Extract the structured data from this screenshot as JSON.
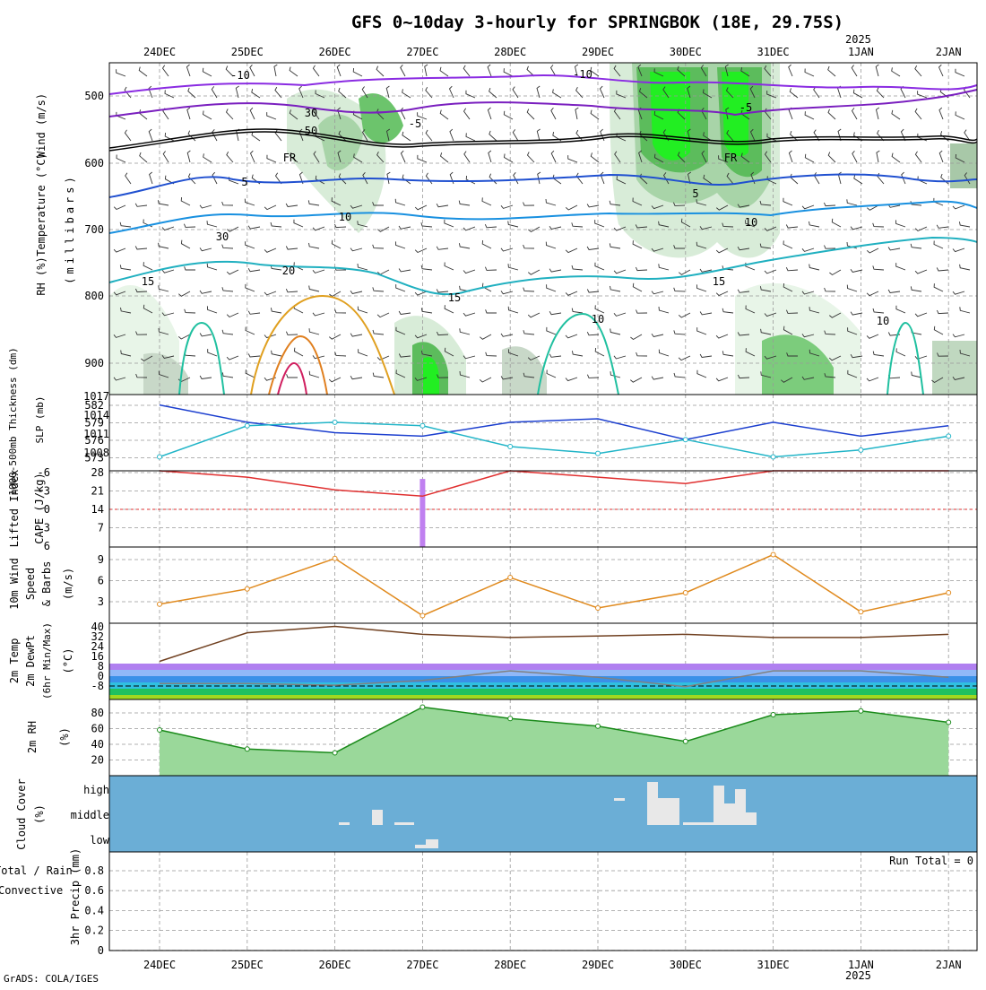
{
  "title": "GFS 0~10day 3-hourly for SPRINGBOK (18E, 29.75S)",
  "credit": "GrADS: COLA/IGES",
  "year_label": "2025",
  "dates": [
    "24DEC",
    "25DEC",
    "26DEC",
    "27DEC",
    "28DEC",
    "29DEC",
    "30DEC",
    "31DEC",
    "1JAN",
    "2JAN"
  ],
  "panels": {
    "upper": {
      "ylabel": "(millibars)",
      "ylabel_wind": "Wind (m/s)",
      "ylabel_temp": "Temperature (°C)",
      "ylabel_rh": "RH (%)",
      "yticks": [
        "500",
        "600",
        "700",
        "800",
        "900"
      ],
      "labels": [
        "-10",
        "-10",
        "-5",
        "-5",
        "FR",
        "FR",
        "5",
        "5",
        "10",
        "10",
        "15",
        "15",
        "15",
        "20",
        "10",
        "10",
        "30",
        "30",
        "50"
      ]
    },
    "slp": {
      "ylabel_thick": "1000-500mb Thickness (dm)",
      "ylabel_slp": "SLP (mb)",
      "left_ticks": [
        "582",
        "579",
        "576",
        "573"
      ],
      "right_ticks": [
        "1017",
        "1014",
        "1011",
        "1008"
      ]
    },
    "cape": {
      "ylabel_li": "Lifted Index",
      "ylabel_cape": "CAPE (J/kg)",
      "left_ticks": [
        "-6",
        "-3",
        "0",
        "3",
        "6"
      ],
      "right_ticks": [
        "28",
        "21",
        "14",
        "7"
      ]
    },
    "wind10": {
      "ylabel_a": "10m Wind",
      "ylabel_b": "Speed",
      "ylabel_c": "& Barbs",
      "ylabel_unit": "(m/s)",
      "yticks": [
        "9",
        "6",
        "3"
      ]
    },
    "temp2m": {
      "ylabel_a": "2m Temp",
      "ylabel_b": "2m DewPt",
      "ylabel_c": "(6hr Min/Max)",
      "ylabel_unit": "(°C)",
      "yticks": [
        "40",
        "32",
        "24",
        "16",
        "8",
        "0",
        "-8"
      ]
    },
    "rh2m": {
      "ylabel": "2m RH",
      "ylabel_unit": "(%)",
      "yticks": [
        "80",
        "60",
        "40",
        "20"
      ]
    },
    "cloud": {
      "ylabel": "Cloud Cover",
      "ylabel_unit": "(%)",
      "levels": [
        "high",
        "middle",
        "low"
      ]
    },
    "precip": {
      "ylabel_a": "Total / Rain",
      "ylabel_b": "Convective",
      "ylabel_c": "3hr Precip (mm)",
      "yticks": [
        "0.8",
        "0.6",
        "0.4",
        "0.2",
        "0"
      ],
      "run_total": "Run Total = 0"
    }
  },
  "colors": {
    "background": "#ffffff",
    "cloud_bg": "#6baed6",
    "slp_line": "#1c3fcf",
    "thickness_line": "#22b5c8",
    "wind_line": "#e08a1e",
    "li_line": "#e03030",
    "cape_bar": "#c080f0",
    "rh_green": "#22aa22"
  },
  "chart_data": [
    {
      "type": "line",
      "title": "SLP / 1000-500mb Thickness",
      "x": [
        "24DEC",
        "25DEC",
        "26DEC",
        "27DEC",
        "28DEC",
        "29DEC",
        "30DEC",
        "31DEC",
        "1JAN",
        "2JAN"
      ],
      "series": [
        {
          "name": "SLP (mb)",
          "values": [
            1015.5,
            1013.0,
            1011.5,
            1011.0,
            1013.0,
            1013.5,
            1010.5,
            1013.0,
            1011.0,
            1012.5
          ]
        },
        {
          "name": "1000-500mb Thickness (dm)",
          "values": [
            574.0,
            578.5,
            579.0,
            578.5,
            575.5,
            574.5,
            576.5,
            574.0,
            575.0,
            577.0
          ]
        }
      ],
      "ylim_left": [
        572,
        583
      ],
      "ylim_right": [
        1006,
        1017
      ]
    },
    {
      "type": "bar",
      "title": "Lifted Index / CAPE",
      "x": [
        "24DEC",
        "25DEC",
        "26DEC",
        "27DEC",
        "28DEC",
        "29DEC",
        "30DEC",
        "31DEC",
        "1JAN",
        "2JAN"
      ],
      "series": [
        {
          "name": "CAPE (J/kg)",
          "values": [
            0,
            0,
            0,
            25,
            0,
            0,
            0,
            0,
            0,
            0
          ]
        },
        {
          "name": "Lifted Index",
          "values": [
            6,
            5,
            3,
            2,
            6,
            5,
            4,
            6,
            6,
            6
          ]
        }
      ],
      "ylim": [
        0,
        28
      ]
    },
    {
      "type": "line",
      "title": "10m Wind Speed",
      "x": [
        "24DEC",
        "25DEC",
        "26DEC",
        "27DEC",
        "28DEC",
        "29DEC",
        "30DEC",
        "31DEC",
        "1JAN",
        "2JAN"
      ],
      "series": [
        {
          "name": "10m Wind Speed (m/s)",
          "values": [
            2.5,
            4.5,
            8.5,
            1.0,
            6.0,
            2.0,
            4.0,
            9.0,
            1.5,
            4.0
          ]
        }
      ],
      "ylim": [
        0,
        10
      ]
    },
    {
      "type": "area",
      "title": "2m Temp / 2m DewPt",
      "x": [
        "24DEC",
        "25DEC",
        "26DEC",
        "27DEC",
        "28DEC",
        "29DEC",
        "30DEC",
        "31DEC",
        "1JAN",
        "2JAN"
      ],
      "series": [
        {
          "name": "2m Temp (°C)",
          "values": [
            16,
            34,
            38,
            33,
            31,
            32,
            33,
            31,
            31,
            33
          ]
        },
        {
          "name": "2m DewPt (°C)",
          "values": [
            2,
            2,
            1,
            4,
            10,
            6,
            0,
            10,
            10,
            6
          ]
        }
      ],
      "ylim": [
        -8,
        40
      ]
    },
    {
      "type": "area",
      "title": "2m RH",
      "x": [
        "24DEC",
        "25DEC",
        "26DEC",
        "27DEC",
        "28DEC",
        "29DEC",
        "30DEC",
        "31DEC",
        "1JAN",
        "2JAN"
      ],
      "series": [
        {
          "name": "2m RH (%)",
          "values": [
            60,
            35,
            30,
            90,
            75,
            65,
            45,
            80,
            85,
            70
          ]
        }
      ],
      "ylim": [
        0,
        100
      ]
    },
    {
      "type": "bar",
      "title": "3hr Precip",
      "x": [
        "24DEC",
        "25DEC",
        "26DEC",
        "27DEC",
        "28DEC",
        "29DEC",
        "30DEC",
        "31DEC",
        "1JAN",
        "2JAN"
      ],
      "series": [
        {
          "name": "3hr Precip (mm)",
          "values": [
            0,
            0,
            0,
            0,
            0,
            0,
            0,
            0,
            0,
            0
          ]
        }
      ],
      "ylim": [
        0,
        1
      ]
    }
  ]
}
